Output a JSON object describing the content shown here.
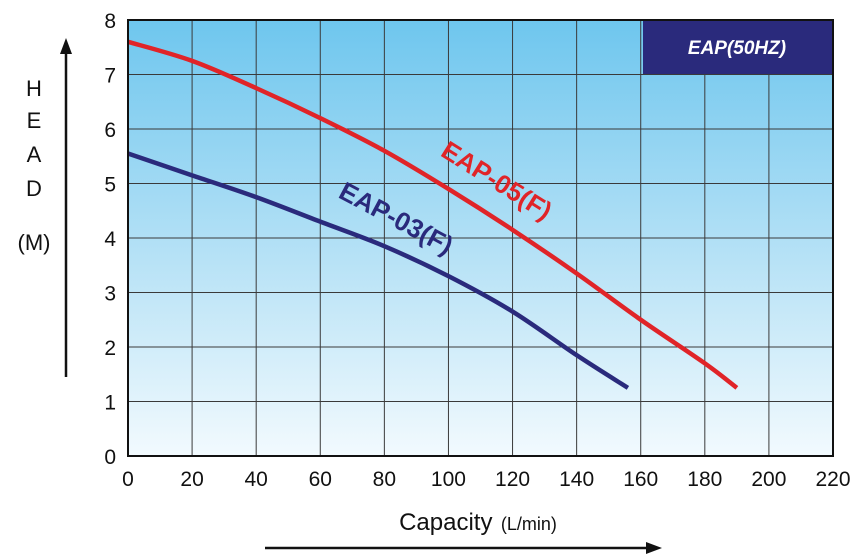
{
  "chart_data": {
    "type": "line",
    "title": "",
    "badge": "EAP(50HZ)",
    "xlabel": "Capacity",
    "xlabel_unit": "(L/min)",
    "ylabel_letters": [
      "H",
      "E",
      "A",
      "D"
    ],
    "ylabel_unit": "(M)",
    "xlim": [
      0,
      220
    ],
    "ylim": [
      0,
      8
    ],
    "x_ticks": [
      0,
      20,
      40,
      60,
      80,
      100,
      120,
      140,
      160,
      180,
      200,
      220
    ],
    "y_ticks": [
      0,
      1,
      2,
      3,
      4,
      5,
      6,
      7,
      8
    ],
    "grid": true,
    "series": [
      {
        "name": "EAP-05(F)",
        "color": "#e02428",
        "x": [
          0,
          20,
          40,
          60,
          80,
          100,
          120,
          140,
          160,
          180,
          190
        ],
        "y": [
          7.6,
          7.25,
          6.75,
          6.2,
          5.6,
          4.9,
          4.15,
          3.35,
          2.5,
          1.7,
          1.25
        ]
      },
      {
        "name": "EAP-03(F)",
        "color": "#2a2a7c",
        "x": [
          0,
          20,
          40,
          60,
          80,
          100,
          120,
          140,
          156
        ],
        "y": [
          5.55,
          5.15,
          4.75,
          4.3,
          3.85,
          3.3,
          2.65,
          1.85,
          1.25
        ]
      }
    ]
  }
}
